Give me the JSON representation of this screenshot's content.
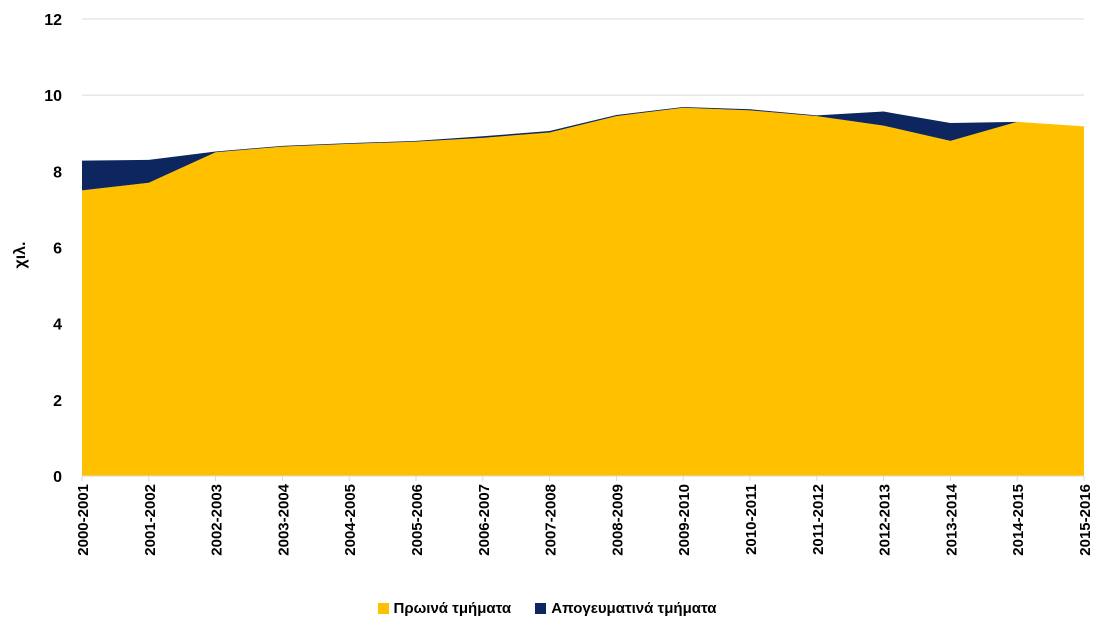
{
  "chart_data": {
    "type": "area",
    "stacked": true,
    "categories": [
      "2000-2001",
      "2001-2002",
      "2002-2003",
      "2003-2004",
      "2004-2005",
      "2005-2006",
      "2006-2007",
      "2007-2008",
      "2008-2009",
      "2009-2010",
      "2010-2011",
      "2011-2012",
      "2012-2013",
      "2013-2014",
      "2014-2015",
      "2015-2016"
    ],
    "series": [
      {
        "name": "Πρωινά τμήματα",
        "color": "#FFC000",
        "values": [
          7.5,
          7.7,
          8.5,
          8.65,
          8.72,
          8.78,
          8.88,
          9.02,
          9.45,
          9.67,
          9.6,
          9.45,
          9.2,
          8.8,
          9.3,
          9.18
        ]
      },
      {
        "name": "Απογευματινά τμήματα",
        "color": "#0D2660",
        "values": [
          0.78,
          0.6,
          0.02,
          0.02,
          0.02,
          0.02,
          0.04,
          0.04,
          0.03,
          0.02,
          0.03,
          0.02,
          0.37,
          0.47,
          0.0,
          0.0
        ]
      }
    ],
    "ylabel": "χιλ.",
    "ylim": [
      0,
      12
    ],
    "yticks": [
      0,
      2,
      4,
      6,
      8,
      10,
      12
    ],
    "grid": true,
    "legend": "bottom"
  }
}
